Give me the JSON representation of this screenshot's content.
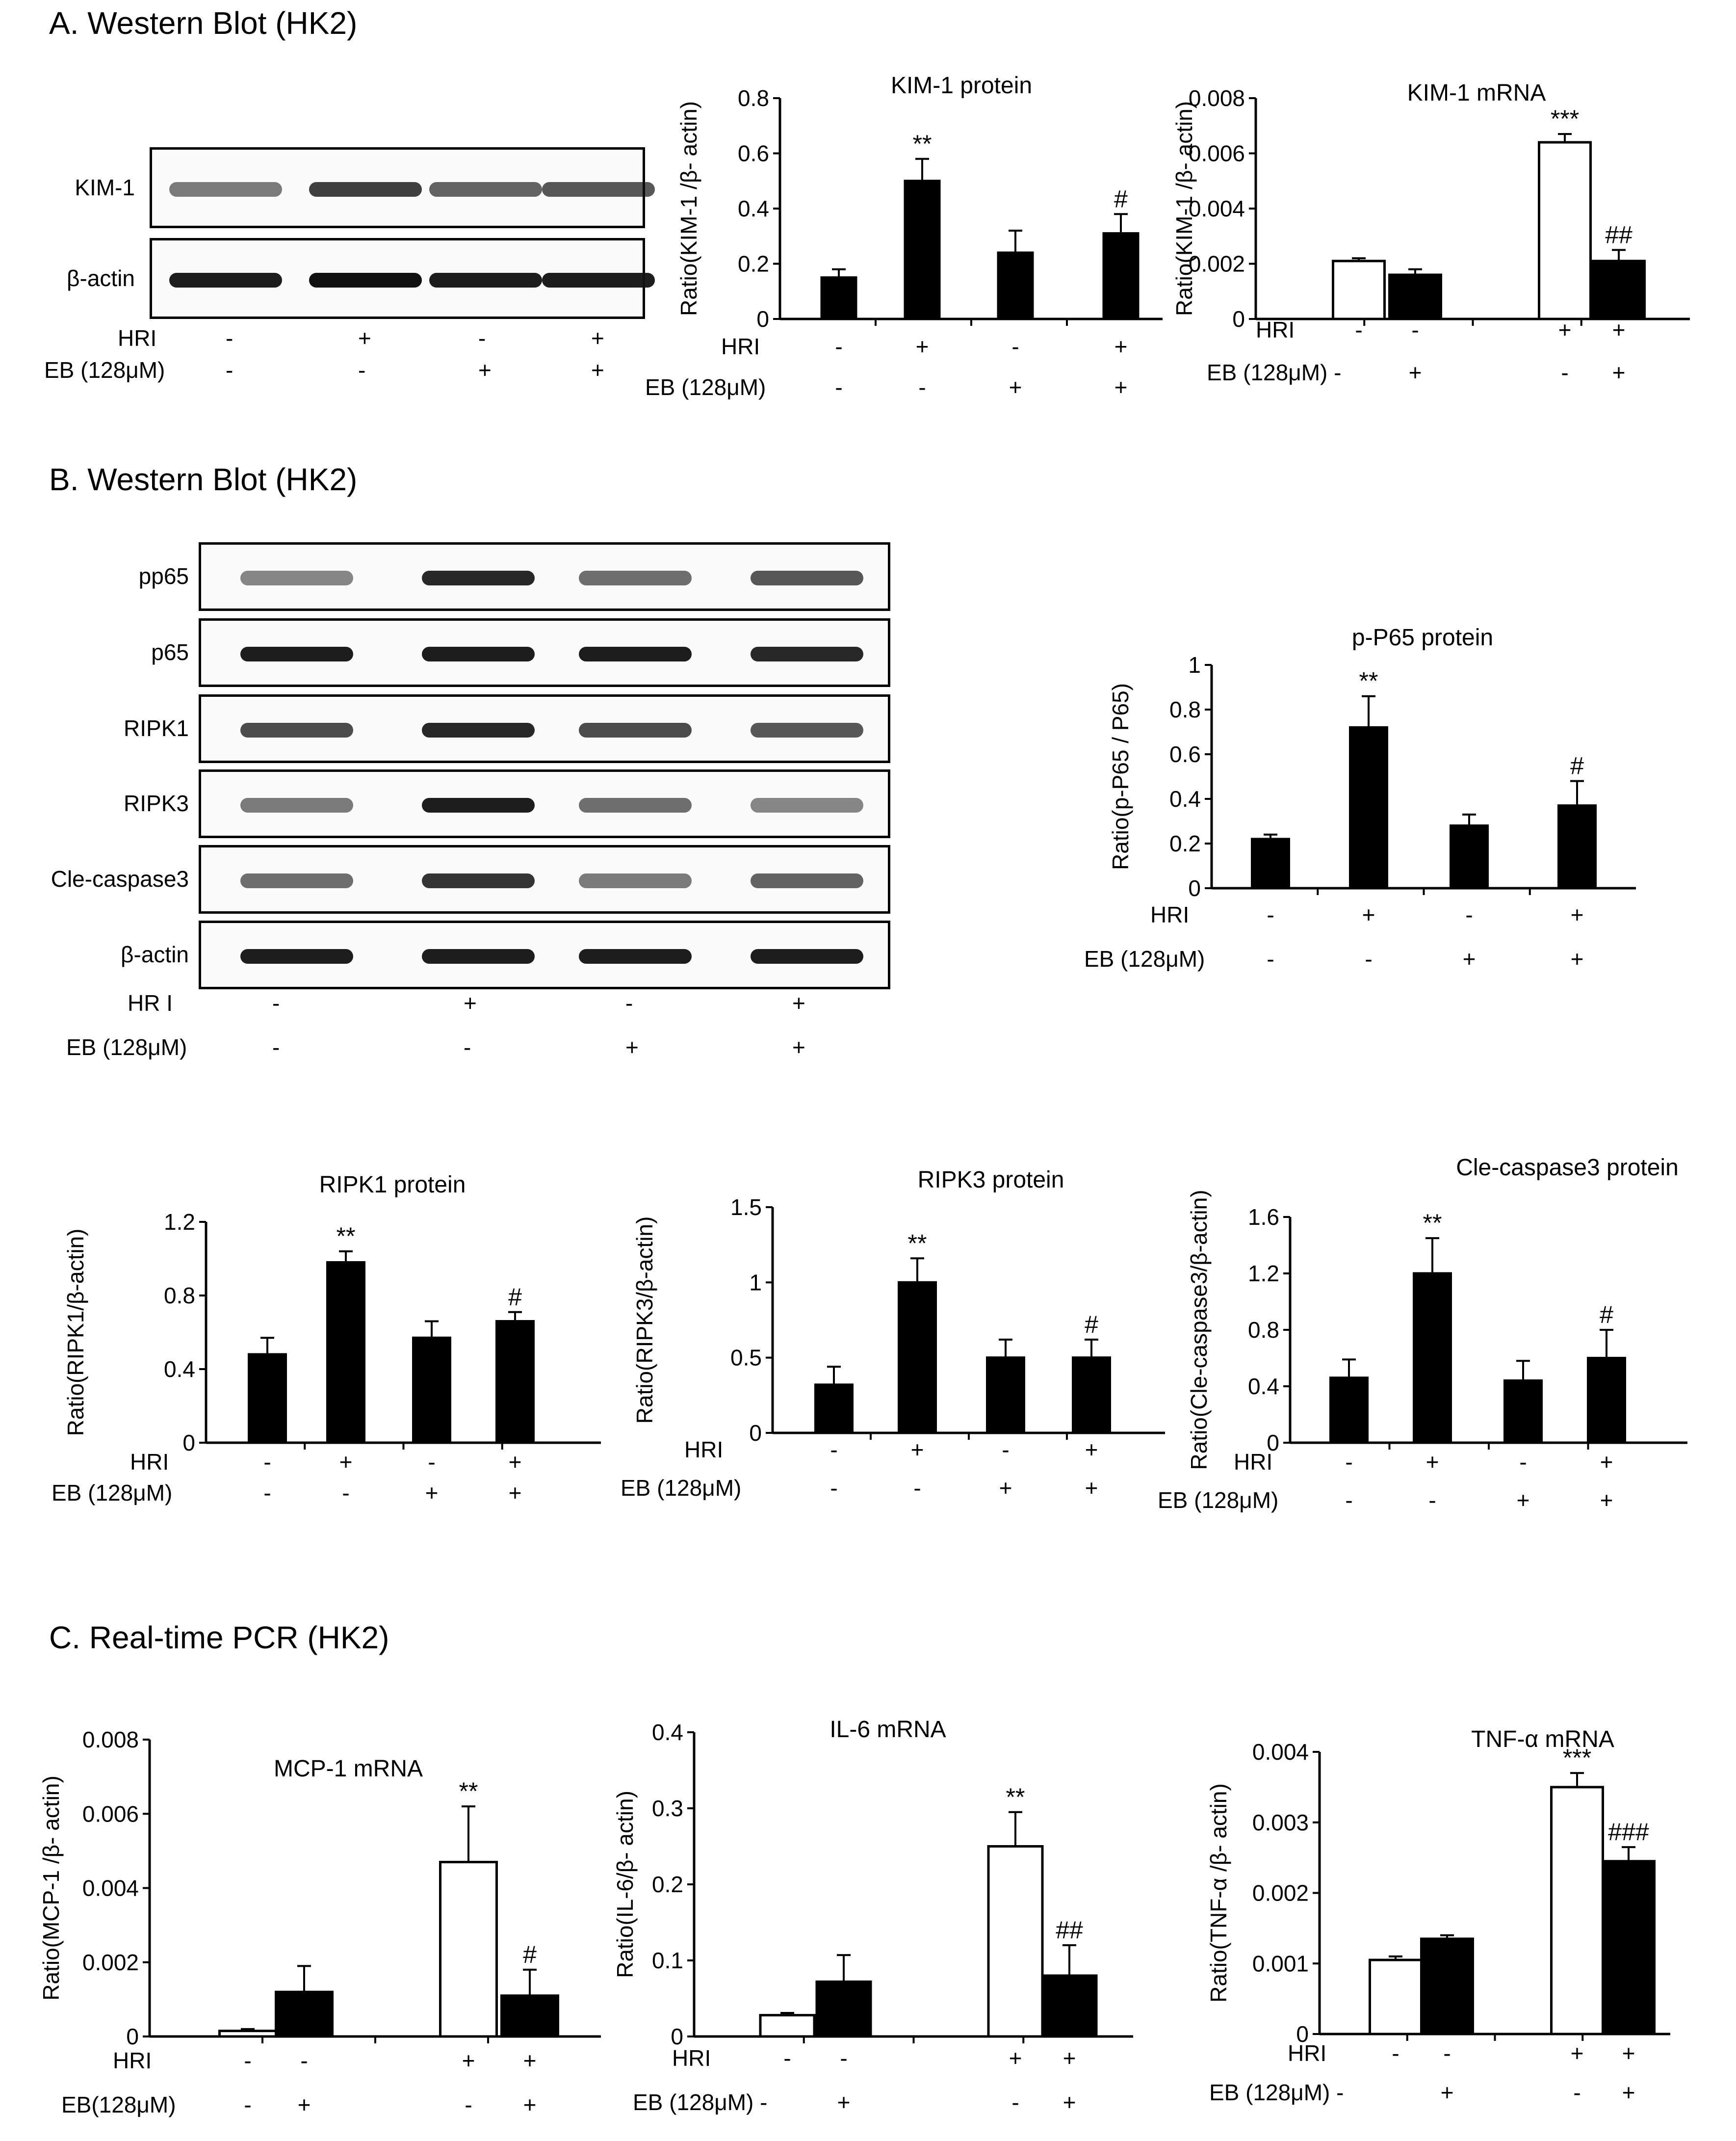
{
  "sections": {
    "a": "A. Western Blot (HK2)",
    "b": "B. Western Blot (HK2)",
    "c": "C. Real-time PCR (HK2)"
  },
  "colors": {
    "bar_hri": "#000000",
    "bar_control": "#ffffff",
    "band": "#111111"
  },
  "blots": {
    "a": {
      "rows": [
        {
          "label": "KIM-1",
          "intensity": [
            0.55,
            0.8,
            0.65,
            0.7
          ]
        },
        {
          "label": "β-actin",
          "intensity": [
            0.95,
            1.0,
            0.95,
            0.95
          ]
        }
      ],
      "hr_label": "HRI",
      "hr": [
        "-",
        "+",
        "-",
        "+"
      ],
      "eb_label": "EB (128μM)",
      "eb": [
        "-",
        "-",
        "+",
        "+"
      ]
    },
    "b": {
      "rows": [
        {
          "label": "pp65",
          "intensity": [
            0.5,
            0.9,
            0.6,
            0.7
          ]
        },
        {
          "label": "p65",
          "intensity": [
            0.95,
            0.95,
            0.95,
            0.9
          ]
        },
        {
          "label": "RIPK1",
          "intensity": [
            0.75,
            0.9,
            0.75,
            0.7
          ]
        },
        {
          "label": "RIPK3",
          "intensity": [
            0.55,
            0.95,
            0.6,
            0.5
          ]
        },
        {
          "label": "Cle-caspase3",
          "intensity": [
            0.6,
            0.85,
            0.55,
            0.65
          ]
        },
        {
          "label": "β-actin",
          "intensity": [
            0.95,
            0.95,
            0.95,
            0.95
          ]
        }
      ],
      "hr_label": "HR I",
      "hr": [
        "-",
        "+",
        "-",
        "+"
      ],
      "eb_label": "EB (128μM)",
      "eb": [
        "-",
        "-",
        "+",
        "+"
      ]
    }
  },
  "chart_data": [
    {
      "id": "kim1_protein",
      "type": "bar",
      "title": "KIM-1 protein",
      "ylabel": "Ratio(KIM-1 /β- actin)",
      "ylim": [
        0,
        0.8
      ],
      "yticks": [
        "0",
        "0.2",
        "0.4",
        "0.6",
        "0.8"
      ],
      "values": [
        0.15,
        0.5,
        0.24,
        0.31
      ],
      "errors": [
        0.03,
        0.08,
        0.08,
        0.07
      ],
      "annotations": [
        "",
        "**",
        "",
        "#"
      ],
      "fills": [
        "black",
        "black",
        "black",
        "black"
      ],
      "hr_label": "HRI",
      "hr": [
        "-",
        "+",
        "-",
        "+"
      ],
      "eb_label": "EB (128μM)",
      "eb": [
        "-",
        "-",
        "+",
        "+"
      ]
    },
    {
      "id": "kim1_mrna",
      "type": "bar",
      "title": "KIM-1 mRNA",
      "ylabel": "Ratio(KIM-1 /β- actin)",
      "ylim": [
        0,
        0.008
      ],
      "yticks": [
        "0",
        "0.002",
        "0.004",
        "0.006",
        "0.008"
      ],
      "values": [
        0.0021,
        0.0016,
        0.0064,
        0.0021
      ],
      "errors": [
        0.0001,
        0.0002,
        0.0003,
        0.0004
      ],
      "annotations": [
        "",
        "",
        "***",
        "##"
      ],
      "fills": [
        "white",
        "black",
        "white",
        "black"
      ],
      "hr_label": "HRI",
      "hr": [
        "-",
        "-",
        "+",
        "+"
      ],
      "eb_label": "EB (128μM) -",
      "eb": [
        "",
        "+",
        "-",
        "+"
      ]
    },
    {
      "id": "pp65_protein",
      "type": "bar",
      "title": "p-P65 protein",
      "ylabel": "Ratio(p-P65 / P65)",
      "ylim": [
        0,
        1
      ],
      "yticks": [
        "0",
        "0.2",
        "0.4",
        "0.6",
        "0.8",
        "1"
      ],
      "values": [
        0.22,
        0.72,
        0.28,
        0.37
      ],
      "errors": [
        0.02,
        0.14,
        0.05,
        0.11
      ],
      "annotations": [
        "",
        "**",
        "",
        "#"
      ],
      "fills": [
        "black",
        "black",
        "black",
        "black"
      ],
      "hr_label": "HRI",
      "hr": [
        "-",
        "+",
        "-",
        "+"
      ],
      "eb_label": "EB (128μM)",
      "eb": [
        "-",
        "-",
        "+",
        "+"
      ]
    },
    {
      "id": "ripk1_protein",
      "type": "bar",
      "title": "RIPK1  protein",
      "ylabel": "Ratio(RIPK1/β-actin)",
      "ylim": [
        0,
        1.2
      ],
      "yticks": [
        "0",
        "0.4",
        "0.8",
        "1.2"
      ],
      "values": [
        0.48,
        0.98,
        0.57,
        0.66
      ],
      "errors": [
        0.09,
        0.06,
        0.09,
        0.05
      ],
      "annotations": [
        "",
        "**",
        "",
        "#"
      ],
      "fills": [
        "black",
        "black",
        "black",
        "black"
      ],
      "hr_label": "HRI",
      "hr": [
        "-",
        "+",
        "-",
        "+"
      ],
      "eb_label": "EB (128μM)",
      "eb": [
        "-",
        "-",
        "+",
        "+"
      ]
    },
    {
      "id": "ripk3_protein",
      "type": "bar",
      "title": "RIPK3  protein",
      "ylabel": "Ratio(RIPK3/β-actin)",
      "ylim": [
        0,
        1.5
      ],
      "yticks": [
        "0",
        "0.5",
        "1",
        "1.5"
      ],
      "values": [
        0.32,
        1.0,
        0.5,
        0.5
      ],
      "errors": [
        0.12,
        0.16,
        0.12,
        0.12
      ],
      "annotations": [
        "",
        "**",
        "",
        "#"
      ],
      "fills": [
        "black",
        "black",
        "black",
        "black"
      ],
      "hr_label": "HRI",
      "hr": [
        "-",
        "+",
        "-",
        "+"
      ],
      "eb_label": "EB (128μM)",
      "eb": [
        "-",
        "-",
        "+",
        "+"
      ]
    },
    {
      "id": "clecasp3_protein",
      "type": "bar",
      "title": "Cle-caspase3  protein",
      "ylabel": "Ratio(Cle-caspase3/β-actin)",
      "ylim": [
        0,
        1.6
      ],
      "yticks": [
        "0",
        "0.4",
        "0.8",
        "1.2",
        "1.6"
      ],
      "values": [
        0.46,
        1.2,
        0.44,
        0.6
      ],
      "errors": [
        0.13,
        0.25,
        0.14,
        0.2
      ],
      "annotations": [
        "",
        "**",
        "",
        "#"
      ],
      "fills": [
        "black",
        "black",
        "black",
        "black"
      ],
      "hr_label": "HRI",
      "hr": [
        "-",
        "+",
        "-",
        "+"
      ],
      "eb_label": "EB (128μM)",
      "eb": [
        "-",
        "-",
        "+",
        "+"
      ]
    },
    {
      "id": "mcp1_mrna",
      "type": "bar",
      "title": "MCP-1 mRNA",
      "ylabel": "Ratio(MCP-1 /β- actin)",
      "ylim": [
        0,
        0.008
      ],
      "yticks": [
        "0",
        "0.002",
        "0.004",
        "0.006",
        "0.008"
      ],
      "values": [
        0.00015,
        0.0012,
        0.0047,
        0.0011
      ],
      "errors": [
        5e-05,
        0.0007,
        0.0015,
        0.0007
      ],
      "annotations": [
        "",
        "",
        "**",
        "#"
      ],
      "fills": [
        "white",
        "black",
        "white",
        "black"
      ],
      "hr_label": "HRI",
      "hr": [
        "-",
        "-",
        "+",
        "+"
      ],
      "eb_label": "EB(128μM)",
      "eb": [
        "-",
        "+",
        "-",
        "+"
      ]
    },
    {
      "id": "il6_mrna",
      "type": "bar",
      "title": "IL-6  mRNA",
      "ylabel": "Ratio(IL-6/β- actin)",
      "ylim": [
        0,
        0.4
      ],
      "yticks": [
        "0",
        "0.1",
        "0.2",
        "0.3",
        "0.4"
      ],
      "values": [
        0.028,
        0.072,
        0.25,
        0.08
      ],
      "errors": [
        0.003,
        0.035,
        0.045,
        0.04
      ],
      "annotations": [
        "",
        "",
        "**",
        "##"
      ],
      "fills": [
        "white",
        "black",
        "white",
        "black"
      ],
      "hr_label": "HRI",
      "hr": [
        "-",
        "-",
        "+",
        "+"
      ],
      "eb_label": "EB (128μM) -",
      "eb": [
        "",
        "+",
        "-",
        "+"
      ]
    },
    {
      "id": "tnfa_mrna",
      "type": "bar",
      "title": "TNF-α  mRNA",
      "ylabel": "Ratio(TNF-α /β- actin)",
      "ylim": [
        0,
        0.004
      ],
      "yticks": [
        "0",
        "0.001",
        "0.002",
        "0.003",
        "0.004"
      ],
      "values": [
        0.00105,
        0.00135,
        0.0035,
        0.00245
      ],
      "errors": [
        5e-05,
        5e-05,
        0.0002,
        0.0002
      ],
      "annotations": [
        "",
        "",
        "***",
        "###"
      ],
      "fills": [
        "white",
        "black",
        "white",
        "black"
      ],
      "hr_label": "HRI",
      "hr": [
        "-",
        "-",
        "+",
        "+"
      ],
      "eb_label": "EB (128μM) -",
      "eb": [
        "",
        "+",
        "-",
        "+"
      ]
    }
  ]
}
